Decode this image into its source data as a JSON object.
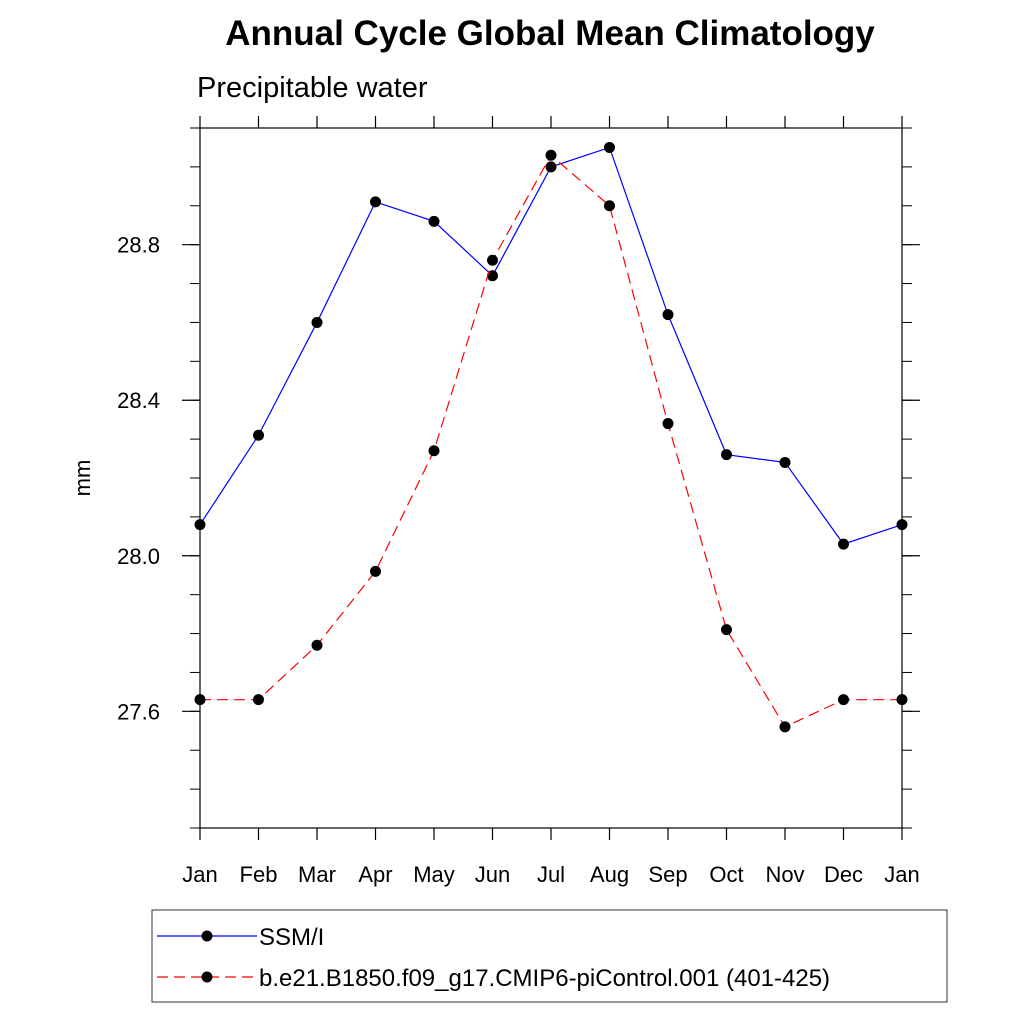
{
  "chart_data": {
    "type": "line",
    "title": "Annual Cycle Global Mean Climatology",
    "subtitle": "Precipitable water",
    "xlabel": "",
    "ylabel": "mm",
    "categories": [
      "Jan",
      "Feb",
      "Mar",
      "Apr",
      "May",
      "Jun",
      "Jul",
      "Aug",
      "Sep",
      "Oct",
      "Nov",
      "Dec",
      "Jan"
    ],
    "ylim": [
      27.3,
      29.1
    ],
    "yticks": [
      "27.6",
      "28.0",
      "28.4",
      "28.8"
    ],
    "grid": false,
    "legend_position": "bottom",
    "series": [
      {
        "name": "SSM/I",
        "color": "#0000ff",
        "style": "solid",
        "values": [
          28.08,
          28.31,
          28.6,
          28.91,
          28.86,
          28.72,
          29.0,
          29.05,
          28.62,
          28.26,
          28.24,
          28.03,
          28.08
        ]
      },
      {
        "name": "b.e21.B1850.f09_g17.CMIP6-piControl.001 (401-425)",
        "color": "#ff0000",
        "style": "dashed",
        "values": [
          27.63,
          27.63,
          27.77,
          27.96,
          28.27,
          28.76,
          29.03,
          28.9,
          28.34,
          27.81,
          27.56,
          27.63,
          27.63
        ]
      }
    ]
  }
}
